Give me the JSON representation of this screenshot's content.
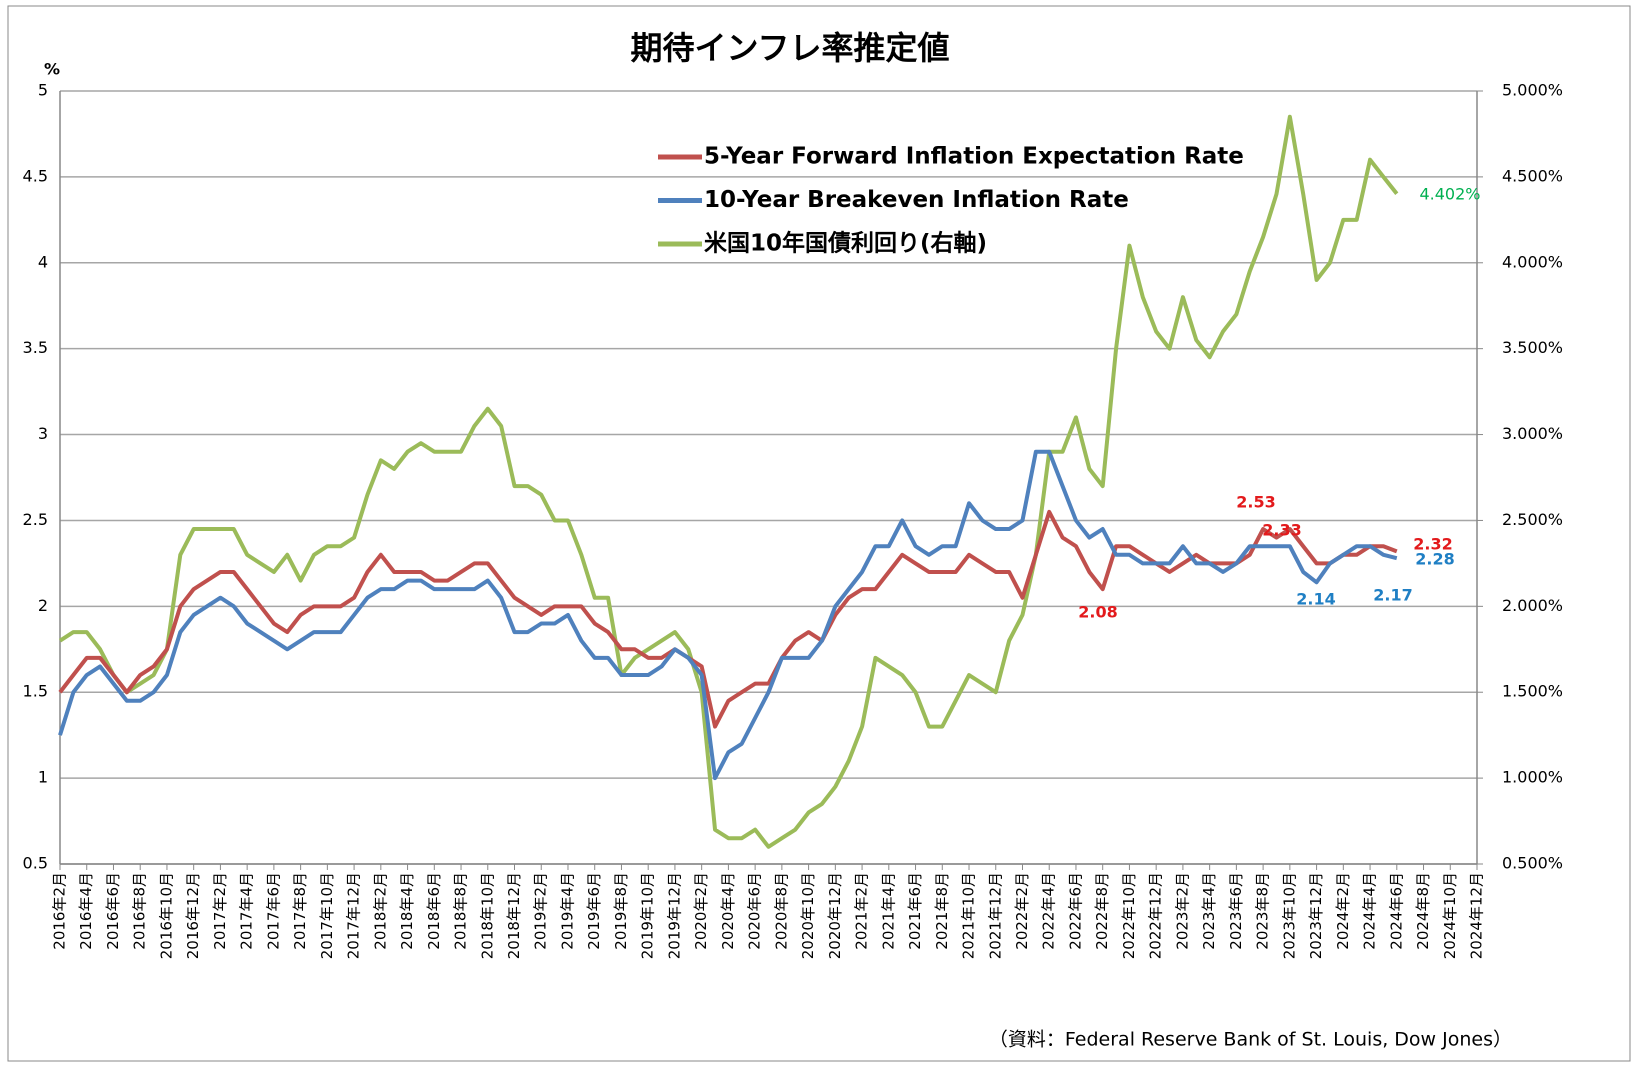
{
  "chart_data": {
    "type": "line",
    "title": "期待インフレ率推定値",
    "ylabel": "%",
    "source": "（資料：Federal Reserve Bank of St. Louis, Dow Jones）",
    "categories": [
      "2016年2月",
      null,
      "2016年4月",
      null,
      "2016年6月",
      null,
      "2016年8月",
      null,
      "2016年10月",
      null,
      "2016年12月",
      null,
      "2017年2月",
      null,
      "2017年4月",
      null,
      "2017年6月",
      null,
      "2017年8月",
      null,
      "2017年10月",
      null,
      "2017年12月",
      null,
      "2018年2月",
      null,
      "2018年4月",
      null,
      "2018年6月",
      null,
      "2018年8月",
      null,
      "2018年10月",
      null,
      "2018年12月",
      null,
      "2019年2月",
      null,
      "2019年4月",
      null,
      "2019年6月",
      null,
      "2019年8月",
      null,
      "2019年10月",
      null,
      "2019年12月",
      null,
      "2020年2月",
      null,
      "2020年4月",
      null,
      "2020年6月",
      null,
      "2020年8月",
      null,
      "2020年10月",
      null,
      "2020年12月",
      null,
      "2021年2月",
      null,
      "2021年4月",
      null,
      "2021年6月",
      null,
      "2021年8月",
      null,
      "2021年10月",
      null,
      "2021年12月",
      null,
      "2022年2月",
      null,
      "2022年4月",
      null,
      "2022年6月",
      null,
      "2022年8月",
      null,
      "2022年10月",
      null,
      "2022年12月",
      null,
      "2023年2月",
      null,
      "2023年4月",
      null,
      "2023年6月",
      null,
      "2023年8月",
      null,
      "2023年10月",
      null,
      "2023年12月",
      null,
      "2024年2月",
      null,
      "2024年4月",
      null,
      "2024年6月",
      null,
      "2024年8月",
      null,
      "2024年10月",
      null,
      "2024年12月"
    ],
    "series": [
      {
        "name": "5-Year Forward Inflation Expectation Rate",
        "color": "#c0504d",
        "values": [
          1.5,
          1.6,
          1.7,
          1.7,
          1.6,
          1.5,
          1.6,
          1.65,
          1.75,
          2.0,
          2.1,
          2.15,
          2.2,
          2.2,
          2.1,
          2.0,
          1.9,
          1.85,
          1.95,
          2.0,
          2.0,
          2.0,
          2.05,
          2.2,
          2.3,
          2.2,
          2.2,
          2.2,
          2.15,
          2.15,
          2.2,
          2.25,
          2.25,
          2.15,
          2.05,
          2.0,
          1.95,
          2.0,
          2.0,
          2.0,
          1.9,
          1.85,
          1.75,
          1.75,
          1.7,
          1.7,
          1.75,
          1.7,
          1.65,
          1.3,
          1.45,
          1.5,
          1.55,
          1.55,
          1.7,
          1.8,
          1.85,
          1.8,
          1.95,
          2.05,
          2.1,
          2.1,
          2.2,
          2.3,
          2.25,
          2.2,
          2.2,
          2.2,
          2.3,
          2.25,
          2.2,
          2.2,
          2.05,
          2.3,
          2.55,
          2.4,
          2.35,
          2.2,
          2.1,
          2.35,
          2.35,
          2.3,
          2.25,
          2.2,
          2.25,
          2.3,
          2.25,
          2.25,
          2.25,
          2.3,
          2.45,
          2.4,
          2.45,
          2.35,
          2.25,
          2.25,
          2.3,
          2.3,
          2.35,
          2.35,
          2.32,
          null,
          null,
          null,
          null,
          null,
          null
        ]
      },
      {
        "name": "10-Year Breakeven Inflation Rate",
        "color": "#4f81bd",
        "values": [
          1.25,
          1.5,
          1.6,
          1.65,
          1.55,
          1.45,
          1.45,
          1.5,
          1.6,
          1.85,
          1.95,
          2.0,
          2.05,
          2.0,
          1.9,
          1.85,
          1.8,
          1.75,
          1.8,
          1.85,
          1.85,
          1.85,
          1.95,
          2.05,
          2.1,
          2.1,
          2.15,
          2.15,
          2.1,
          2.1,
          2.1,
          2.1,
          2.15,
          2.05,
          1.85,
          1.85,
          1.9,
          1.9,
          1.95,
          1.8,
          1.7,
          1.7,
          1.6,
          1.6,
          1.6,
          1.65,
          1.75,
          1.7,
          1.6,
          1.0,
          1.15,
          1.2,
          1.35,
          1.5,
          1.7,
          1.7,
          1.7,
          1.8,
          2.0,
          2.1,
          2.2,
          2.35,
          2.35,
          2.5,
          2.35,
          2.3,
          2.35,
          2.35,
          2.6,
          2.5,
          2.45,
          2.45,
          2.5,
          2.9,
          2.9,
          2.7,
          2.5,
          2.4,
          2.45,
          2.3,
          2.3,
          2.25,
          2.25,
          2.25,
          2.35,
          2.25,
          2.25,
          2.2,
          2.25,
          2.35,
          2.35,
          2.35,
          2.35,
          2.2,
          2.14,
          2.25,
          2.3,
          2.35,
          2.35,
          2.3,
          2.28,
          null,
          null,
          null,
          null,
          null,
          null
        ]
      },
      {
        "name": "米国10年国債利回り(右軸)",
        "color": "#9bbb59",
        "axis": "y2",
        "values": [
          1.8,
          1.85,
          1.85,
          1.75,
          1.6,
          1.5,
          1.55,
          1.6,
          1.75,
          2.3,
          2.45,
          2.45,
          2.45,
          2.45,
          2.3,
          2.25,
          2.2,
          2.3,
          2.15,
          2.3,
          2.35,
          2.35,
          2.4,
          2.65,
          2.85,
          2.8,
          2.9,
          2.95,
          2.9,
          2.9,
          2.9,
          3.05,
          3.15,
          3.05,
          2.7,
          2.7,
          2.65,
          2.5,
          2.5,
          2.3,
          2.05,
          2.05,
          1.6,
          1.7,
          1.75,
          1.8,
          1.85,
          1.75,
          1.5,
          0.7,
          0.65,
          0.65,
          0.7,
          0.6,
          0.65,
          0.7,
          0.8,
          0.85,
          0.95,
          1.1,
          1.3,
          1.7,
          1.65,
          1.6,
          1.5,
          1.3,
          1.3,
          1.45,
          1.6,
          1.55,
          1.5,
          1.8,
          1.95,
          2.3,
          2.9,
          2.9,
          3.1,
          2.8,
          2.7,
          3.5,
          4.1,
          3.8,
          3.6,
          3.5,
          3.8,
          3.55,
          3.45,
          3.6,
          3.7,
          3.95,
          4.15,
          4.4,
          4.85,
          4.4,
          3.9,
          4.0,
          4.25,
          4.25,
          4.6,
          4.5,
          4.402,
          null,
          null,
          null,
          null,
          null,
          null
        ]
      }
    ],
    "ylim": [
      0.5,
      5
    ],
    "yticks": [
      0.5,
      1,
      1.5,
      2,
      2.5,
      3,
      3.5,
      4,
      4.5,
      5
    ],
    "y2lim": [
      0.5,
      5
    ],
    "y2ticks": [
      {
        "value": 0.5,
        "label": "0.500%"
      },
      {
        "value": 1,
        "label": "1.000%"
      },
      {
        "value": 1.5,
        "label": "1.500%"
      },
      {
        "value": 2,
        "label": "2.000%"
      },
      {
        "value": 2.5,
        "label": "2.500%"
      },
      {
        "value": 3,
        "label": "3.000%"
      },
      {
        "value": 3.5,
        "label": "3.500%"
      },
      {
        "value": 4,
        "label": "4.000%"
      },
      {
        "value": 4.5,
        "label": "4.500%"
      },
      {
        "value": 5,
        "label": "5.000%"
      }
    ],
    "grid": true,
    "legend": "top",
    "annotations": [
      {
        "label": "2.53",
        "value": 2.53,
        "color": "#e31a1c"
      },
      {
        "label": "2.33",
        "value": 2.33,
        "color": "#e31a1c"
      },
      {
        "label": "2.08",
        "value": 2.08,
        "color": "#e31a1c"
      },
      {
        "label": "2.32",
        "value": 2.32,
        "color": "#e31a1c"
      },
      {
        "label": "2.28",
        "value": 2.28,
        "color": "#1f7fc4"
      },
      {
        "label": "2.14",
        "value": 2.14,
        "color": "#1f7fc4"
      },
      {
        "label": "2.17",
        "value": 2.17,
        "color": "#1f7fc4"
      },
      {
        "label": "4.402%",
        "value": 4.402,
        "color": "#00b050"
      }
    ]
  }
}
